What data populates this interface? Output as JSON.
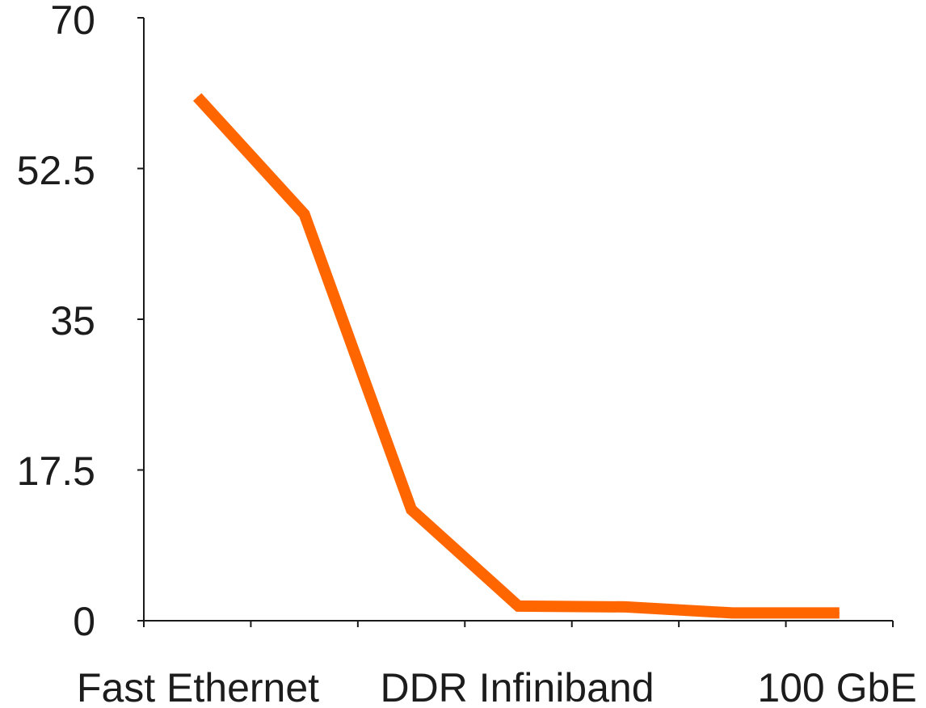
{
  "chart_data": {
    "type": "line",
    "title": "",
    "xlabel": "",
    "ylabel": "",
    "categories": [
      "Fast Ethernet",
      "",
      "DDR Infiniband",
      "",
      "",
      "",
      "100 GbE"
    ],
    "x_tick_labels": [
      "Fast Ethernet",
      "DDR Infiniband",
      "100 GbE"
    ],
    "y_ticks": [
      "0",
      "17.5",
      "35",
      "52.5",
      "70"
    ],
    "ylim": [
      0,
      70
    ],
    "grid": false,
    "legend": "none",
    "series": [
      {
        "values": [
          60.8,
          47.2,
          12.9,
          1.7,
          1.6,
          0.9,
          0.9
        ],
        "color": "#FF6600"
      }
    ]
  }
}
